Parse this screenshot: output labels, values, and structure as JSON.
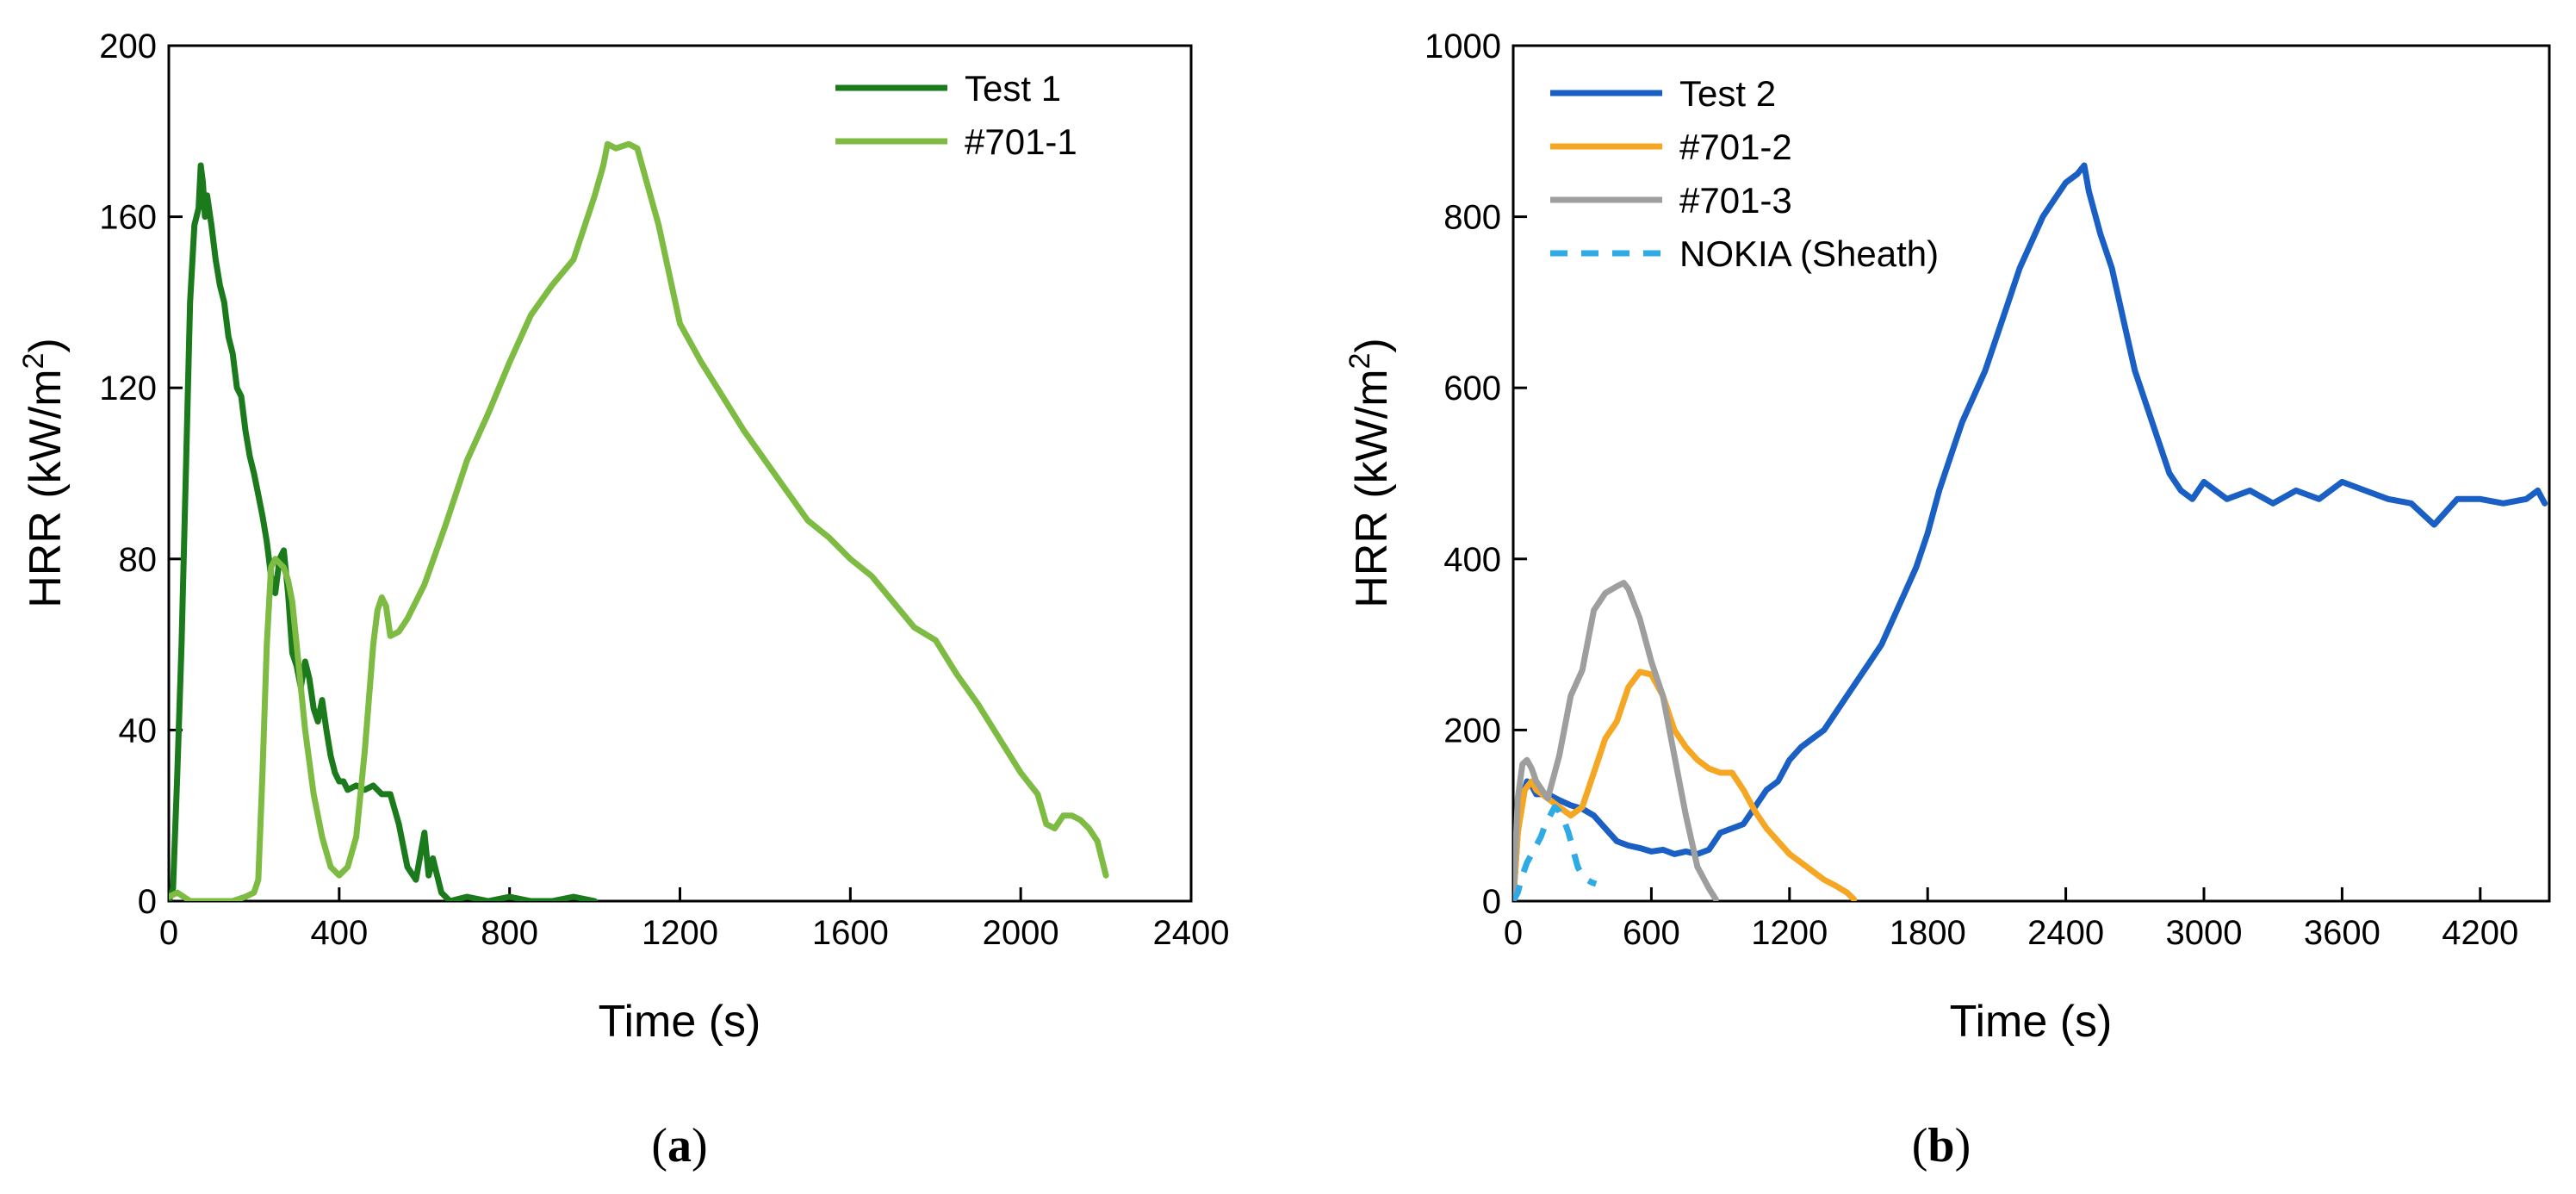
{
  "chart_data": [
    {
      "type": "line",
      "panel_label": "a",
      "xlabel": "Time (s)",
      "ylabel": "HRR (kW/m",
      "ylabel_sup": "2",
      "ylabel_close": ")",
      "xlim": [
        0,
        2400
      ],
      "ylim": [
        0,
        200
      ],
      "xticks": [
        0,
        400,
        800,
        1200,
        1600,
        2000,
        2400
      ],
      "yticks": [
        0,
        40,
        80,
        120,
        160,
        200
      ],
      "legend_position": "top-right",
      "series": [
        {
          "name": "Test 1",
          "color": "#1b7a1b",
          "dash": "solid",
          "x": [
            0,
            10,
            20,
            30,
            40,
            50,
            60,
            70,
            75,
            80,
            85,
            90,
            100,
            110,
            120,
            130,
            140,
            150,
            160,
            170,
            180,
            190,
            200,
            210,
            220,
            230,
            240,
            250,
            260,
            270,
            280,
            290,
            300,
            310,
            320,
            330,
            340,
            350,
            360,
            370,
            380,
            390,
            400,
            410,
            420,
            440,
            460,
            480,
            500,
            520,
            540,
            560,
            580,
            600,
            610,
            620,
            640,
            660,
            700,
            750,
            800,
            850,
            900,
            950,
            1000
          ],
          "y": [
            0,
            3,
            30,
            60,
            100,
            140,
            158,
            162,
            172,
            168,
            160,
            165,
            158,
            150,
            144,
            140,
            132,
            128,
            120,
            118,
            110,
            104,
            100,
            95,
            90,
            84,
            76,
            72,
            80,
            82,
            72,
            58,
            55,
            50,
            56,
            52,
            45,
            42,
            47,
            40,
            34,
            30,
            28,
            28,
            26,
            27,
            26,
            27,
            25,
            25,
            18,
            8,
            5,
            16,
            6,
            10,
            2,
            0,
            1,
            0,
            1,
            0,
            0,
            1,
            0
          ]
        },
        {
          "name": "#701-1",
          "color": "#7dbb42",
          "dash": "solid",
          "x": [
            0,
            20,
            50,
            100,
            150,
            180,
            200,
            210,
            220,
            230,
            240,
            250,
            260,
            270,
            280,
            290,
            300,
            320,
            340,
            360,
            380,
            400,
            420,
            440,
            460,
            480,
            490,
            500,
            510,
            520,
            540,
            560,
            600,
            650,
            700,
            750,
            800,
            850,
            900,
            950,
            1000,
            1020,
            1030,
            1050,
            1080,
            1100,
            1150,
            1200,
            1250,
            1300,
            1350,
            1400,
            1450,
            1500,
            1550,
            1600,
            1650,
            1700,
            1750,
            1800,
            1850,
            1900,
            1950,
            2000,
            2040,
            2060,
            2080,
            2100,
            2120,
            2140,
            2160,
            2180,
            2200
          ],
          "y": [
            1,
            2,
            0,
            0,
            0,
            1,
            2,
            5,
            30,
            60,
            78,
            80,
            79,
            78,
            75,
            70,
            60,
            40,
            25,
            15,
            8,
            6,
            8,
            15,
            35,
            60,
            68,
            71,
            69,
            62,
            63,
            66,
            74,
            88,
            103,
            114,
            126,
            137,
            144,
            150,
            165,
            172,
            177,
            176,
            177,
            176,
            158,
            135,
            126,
            118,
            110,
            103,
            96,
            89,
            85,
            80,
            76,
            70,
            64,
            61,
            53,
            46,
            38,
            30,
            25,
            18,
            17,
            20,
            20,
            19,
            17,
            14,
            6
          ]
        }
      ]
    },
    {
      "type": "line",
      "panel_label": "b",
      "xlabel": "Time (s)",
      "ylabel": "HRR (kW/m",
      "ylabel_sup": "2",
      "ylabel_close": ")",
      "xlim": [
        0,
        4500
      ],
      "ylim": [
        0,
        1000
      ],
      "xticks": [
        0,
        600,
        1200,
        1800,
        2400,
        3000,
        3600,
        4200
      ],
      "yticks": [
        0,
        200,
        400,
        600,
        800,
        1000
      ],
      "legend_position": "top-left",
      "series": [
        {
          "name": "Test 2",
          "color": "#1a5fc4",
          "dash": "solid",
          "x": [
            0,
            20,
            40,
            60,
            80,
            100,
            150,
            200,
            250,
            300,
            350,
            400,
            450,
            500,
            550,
            600,
            650,
            700,
            750,
            800,
            850,
            900,
            950,
            1000,
            1050,
            1100,
            1150,
            1200,
            1250,
            1300,
            1350,
            1400,
            1450,
            1500,
            1550,
            1600,
            1650,
            1700,
            1750,
            1800,
            1850,
            1900,
            1950,
            2000,
            2050,
            2100,
            2150,
            2200,
            2250,
            2300,
            2350,
            2400,
            2450,
            2480,
            2500,
            2550,
            2600,
            2650,
            2700,
            2750,
            2800,
            2850,
            2900,
            2950,
            3000,
            3100,
            3200,
            3300,
            3400,
            3500,
            3600,
            3700,
            3800,
            3900,
            4000,
            4100,
            4200,
            4300,
            4400,
            4450,
            4480
          ],
          "y": [
            0,
            80,
            120,
            140,
            135,
            125,
            125,
            118,
            112,
            108,
            100,
            85,
            70,
            65,
            62,
            58,
            60,
            55,
            58,
            55,
            60,
            80,
            85,
            90,
            110,
            130,
            140,
            165,
            180,
            190,
            200,
            220,
            240,
            260,
            280,
            300,
            330,
            360,
            390,
            430,
            480,
            520,
            560,
            590,
            620,
            660,
            700,
            740,
            770,
            800,
            820,
            840,
            850,
            860,
            830,
            780,
            740,
            680,
            620,
            580,
            540,
            500,
            480,
            470,
            490,
            470,
            480,
            465,
            480,
            470,
            490,
            480,
            470,
            465,
            440,
            470,
            470,
            465,
            470,
            480,
            465
          ]
        },
        {
          "name": "#701-2",
          "color": "#f5a623",
          "dash": "solid",
          "x": [
            0,
            20,
            50,
            80,
            100,
            150,
            200,
            250,
            300,
            350,
            400,
            450,
            500,
            550,
            600,
            650,
            700,
            750,
            800,
            850,
            900,
            950,
            1000,
            1050,
            1100,
            1150,
            1200,
            1250,
            1300,
            1350,
            1400,
            1450,
            1480
          ],
          "y": [
            0,
            80,
            130,
            140,
            130,
            120,
            110,
            100,
            110,
            150,
            190,
            210,
            250,
            268,
            265,
            240,
            200,
            180,
            165,
            155,
            150,
            150,
            130,
            105,
            85,
            70,
            55,
            45,
            35,
            25,
            18,
            10,
            2
          ]
        },
        {
          "name": "#701-3",
          "color": "#9e9e9e",
          "dash": "solid",
          "x": [
            0,
            20,
            40,
            60,
            80,
            100,
            150,
            200,
            250,
            300,
            350,
            400,
            450,
            480,
            500,
            550,
            600,
            650,
            700,
            750,
            800,
            850,
            880
          ],
          "y": [
            0,
            120,
            160,
            165,
            155,
            140,
            120,
            170,
            240,
            270,
            340,
            360,
            368,
            372,
            365,
            330,
            280,
            240,
            170,
            100,
            40,
            15,
            2
          ]
        },
        {
          "name": "NOKIA (Sheath)",
          "color": "#2eaae6",
          "dash": "dashed",
          "x": [
            0,
            20,
            40,
            60,
            80,
            100,
            120,
            140,
            160,
            180,
            200,
            220,
            240,
            260,
            280,
            300,
            320,
            340,
            360
          ],
          "y": [
            0,
            10,
            30,
            45,
            55,
            65,
            75,
            90,
            100,
            110,
            105,
            95,
            80,
            60,
            40,
            30,
            25,
            22,
            20
          ]
        }
      ]
    }
  ]
}
